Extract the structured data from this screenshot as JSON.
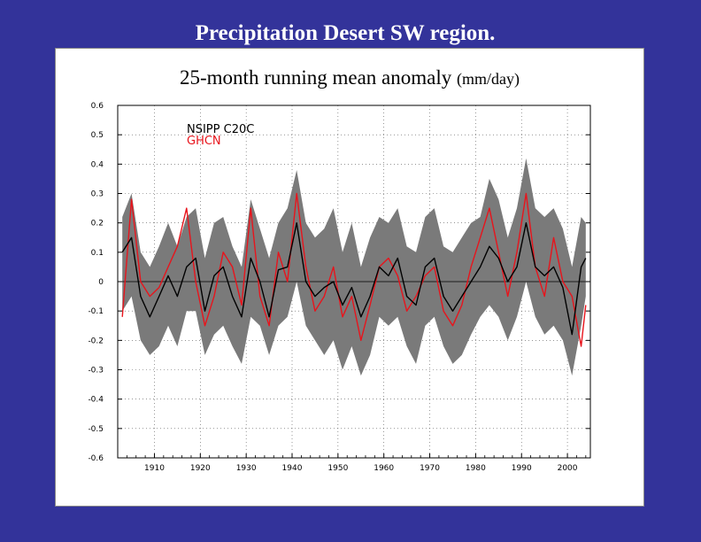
{
  "slide": {
    "title": "Precipitation Desert SW region."
  },
  "colors": {
    "background": "#33339a",
    "panel": "#ffffff",
    "spread": "#7a7a7a",
    "model_mean": "#000000",
    "observed": "#e8141c"
  },
  "chart_data": {
    "type": "line",
    "title": "25-month running mean anomaly",
    "units": "(mm/day)",
    "xlabel": "",
    "ylabel": "",
    "xlim": [
      1902,
      2005
    ],
    "ylim": [
      -0.6,
      0.6
    ],
    "grid": true,
    "legend_position": "top-left",
    "x_ticks": [
      1910,
      1920,
      1930,
      1940,
      1950,
      1960,
      1970,
      1980,
      1990,
      2000
    ],
    "x_tick_labels": [
      "1910",
      "1920",
      "1930",
      "1940",
      "1950",
      "1960",
      "1970",
      "1980",
      "1990",
      "2000"
    ],
    "y_ticks": [
      0.6,
      0.5,
      0.4,
      0.3,
      0.2,
      0.1,
      0,
      -0.1,
      -0.2,
      -0.3,
      -0.4,
      -0.5,
      -0.6
    ],
    "y_tick_labels": [
      "0.6",
      "0.5",
      "0.4",
      "0.3",
      "0.2",
      "0.1",
      "0",
      "-0.1",
      "-0.2",
      "-0.3",
      "-0.4",
      "-0.5",
      "-0.6"
    ],
    "x": [
      1903,
      1905,
      1907,
      1909,
      1911,
      1913,
      1915,
      1917,
      1919,
      1921,
      1923,
      1925,
      1927,
      1929,
      1931,
      1933,
      1935,
      1937,
      1939,
      1941,
      1943,
      1945,
      1947,
      1949,
      1951,
      1953,
      1955,
      1957,
      1959,
      1961,
      1963,
      1965,
      1967,
      1969,
      1971,
      1973,
      1975,
      1977,
      1979,
      1981,
      1983,
      1985,
      1987,
      1989,
      1991,
      1993,
      1995,
      1997,
      1999,
      2001,
      2003,
      2004
    ],
    "series": [
      {
        "name": "NSIPP_C20C",
        "label": "NSIPP  C20C",
        "role": "ensemble-mean",
        "values": [
          0.1,
          0.15,
          -0.05,
          -0.12,
          -0.05,
          0.02,
          -0.05,
          0.05,
          0.08,
          -0.1,
          0.02,
          0.05,
          -0.05,
          -0.12,
          0.08,
          0.0,
          -0.12,
          0.04,
          0.05,
          0.2,
          0.0,
          -0.05,
          -0.02,
          0.0,
          -0.08,
          -0.02,
          -0.12,
          -0.05,
          0.05,
          0.02,
          0.08,
          -0.05,
          -0.08,
          0.05,
          0.08,
          -0.05,
          -0.1,
          -0.05,
          0.0,
          0.05,
          0.12,
          0.08,
          0.0,
          0.05,
          0.2,
          0.05,
          0.02,
          0.05,
          -0.02,
          -0.18,
          0.05,
          0.08
        ]
      },
      {
        "name": "GHCN",
        "label": "GHCN",
        "role": "observed",
        "values": [
          -0.12,
          0.28,
          0.0,
          -0.05,
          -0.02,
          0.05,
          0.12,
          0.25,
          0.0,
          -0.15,
          -0.05,
          0.1,
          0.05,
          -0.08,
          0.25,
          -0.05,
          -0.15,
          0.1,
          0.0,
          0.3,
          0.05,
          -0.1,
          -0.05,
          0.05,
          -0.12,
          -0.05,
          -0.2,
          -0.08,
          0.05,
          0.08,
          0.02,
          -0.1,
          -0.05,
          0.02,
          0.05,
          -0.1,
          -0.15,
          -0.08,
          0.05,
          0.15,
          0.25,
          0.1,
          -0.05,
          0.1,
          0.3,
          0.05,
          -0.05,
          0.15,
          0.0,
          -0.05,
          -0.22,
          -0.08
        ]
      }
    ],
    "spread": {
      "name": "ensemble-range",
      "upper": [
        0.22,
        0.3,
        0.1,
        0.05,
        0.12,
        0.2,
        0.12,
        0.22,
        0.25,
        0.08,
        0.2,
        0.22,
        0.12,
        0.05,
        0.28,
        0.18,
        0.08,
        0.2,
        0.25,
        0.38,
        0.2,
        0.15,
        0.18,
        0.25,
        0.1,
        0.2,
        0.05,
        0.15,
        0.22,
        0.2,
        0.25,
        0.12,
        0.1,
        0.22,
        0.25,
        0.12,
        0.1,
        0.15,
        0.2,
        0.22,
        0.35,
        0.28,
        0.15,
        0.25,
        0.42,
        0.25,
        0.22,
        0.25,
        0.18,
        0.05,
        0.22,
        0.2
      ],
      "lower": [
        -0.1,
        -0.05,
        -0.2,
        -0.25,
        -0.22,
        -0.15,
        -0.22,
        -0.1,
        -0.1,
        -0.25,
        -0.18,
        -0.15,
        -0.22,
        -0.28,
        -0.12,
        -0.15,
        -0.25,
        -0.15,
        -0.12,
        0.0,
        -0.15,
        -0.2,
        -0.25,
        -0.2,
        -0.3,
        -0.22,
        -0.32,
        -0.25,
        -0.12,
        -0.15,
        -0.12,
        -0.22,
        -0.28,
        -0.15,
        -0.12,
        -0.22,
        -0.28,
        -0.25,
        -0.18,
        -0.12,
        -0.08,
        -0.12,
        -0.2,
        -0.12,
        0.0,
        -0.12,
        -0.18,
        -0.15,
        -0.2,
        -0.32,
        -0.15,
        -0.05
      ]
    }
  }
}
